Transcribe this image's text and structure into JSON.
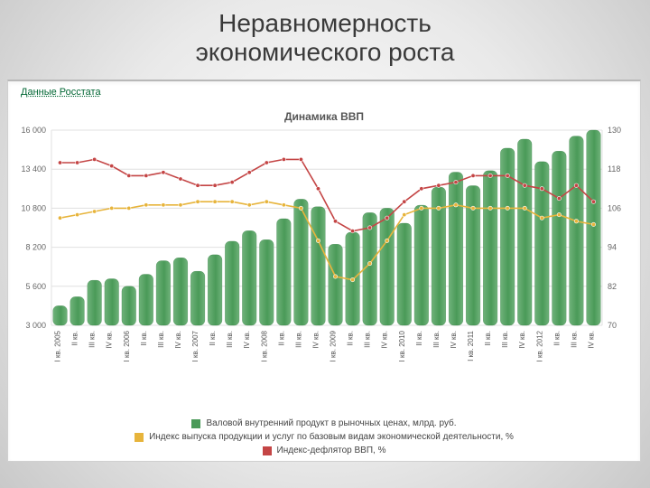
{
  "title_line1": "Неравномерность",
  "title_line2": "экономического роста",
  "source_link": "Данные Росстата",
  "chart": {
    "type": "bar+line",
    "title": "Динамика ВВП",
    "background_color": "#ffffff",
    "plot_bg": "#ffffff",
    "grid_color": "#e0e0e0",
    "y_left": {
      "min": 3000,
      "max": 16000,
      "ticks": [
        3000,
        5600,
        8200,
        10800,
        13400,
        16000
      ],
      "label_fontsize": 9,
      "color": "#666666"
    },
    "y_right": {
      "min": 70,
      "max": 130,
      "ticks": [
        70,
        82,
        94,
        106,
        118,
        130
      ],
      "label_fontsize": 9,
      "color": "#666666"
    },
    "x_labels": [
      "I кв. 2005",
      "II кв.",
      "III кв.",
      "IV кв.",
      "I кв. 2006",
      "II кв.",
      "III кв.",
      "IV кв.",
      "I кв. 2007",
      "II кв.",
      "III кв.",
      "IV кв.",
      "I кв. 2008",
      "II кв.",
      "III кв.",
      "IV кв.",
      "I кв. 2009",
      "II кв.",
      "III кв.",
      "IV кв.",
      "I кв. 2010",
      "II кв.",
      "III кв.",
      "IV кв.",
      "I кв. 2011",
      "II кв.",
      "III кв.",
      "IV кв.",
      "I кв. 2012",
      "II кв.",
      "III кв.",
      "IV кв."
    ],
    "bars": {
      "color": "#4a9a58",
      "color_light": "#6fb27a",
      "values": [
        4300,
        4900,
        6000,
        6100,
        5600,
        6400,
        7300,
        7500,
        6600,
        7700,
        8600,
        9300,
        8700,
        10100,
        11400,
        10900,
        8400,
        9200,
        10500,
        10800,
        9800,
        11000,
        12200,
        13200,
        12300,
        13300,
        14800,
        15400,
        13900,
        14600,
        15600,
        16000
      ]
    },
    "line_red": {
      "color": "#c44545",
      "marker": "#c44545",
      "values": [
        120,
        120,
        121,
        119,
        116,
        116,
        117,
        115,
        113,
        113,
        114,
        117,
        120,
        121,
        121,
        112,
        102,
        99,
        100,
        103,
        108,
        112,
        113,
        114,
        116,
        116,
        116,
        113,
        112,
        109,
        113,
        108
      ]
    },
    "line_yellow": {
      "color": "#e7b43b",
      "marker": "#e7b43b",
      "values": [
        103,
        104,
        105,
        106,
        106,
        107,
        107,
        107,
        108,
        108,
        108,
        107,
        108,
        107,
        106,
        96,
        85,
        84,
        89,
        96,
        104,
        106,
        106,
        107,
        106,
        106,
        106,
        106,
        103,
        104,
        102,
        101
      ]
    },
    "legend": {
      "bar_label": "Валовой внутренний продукт в рыночных ценах, млрд. руб.",
      "yellow_label": "Индекс выпуска продукции и услуг по базовым видам экономической деятельности, %",
      "red_label": "Индекс-дефлятор ВВП, %",
      "bar_color": "#4a9a58",
      "yellow_color": "#e7b43b",
      "red_color": "#c44545"
    },
    "x_label_fontsize": 8,
    "marker_radius": 2.2,
    "line_width": 1.6,
    "bar_gap_ratio": 0.18
  }
}
